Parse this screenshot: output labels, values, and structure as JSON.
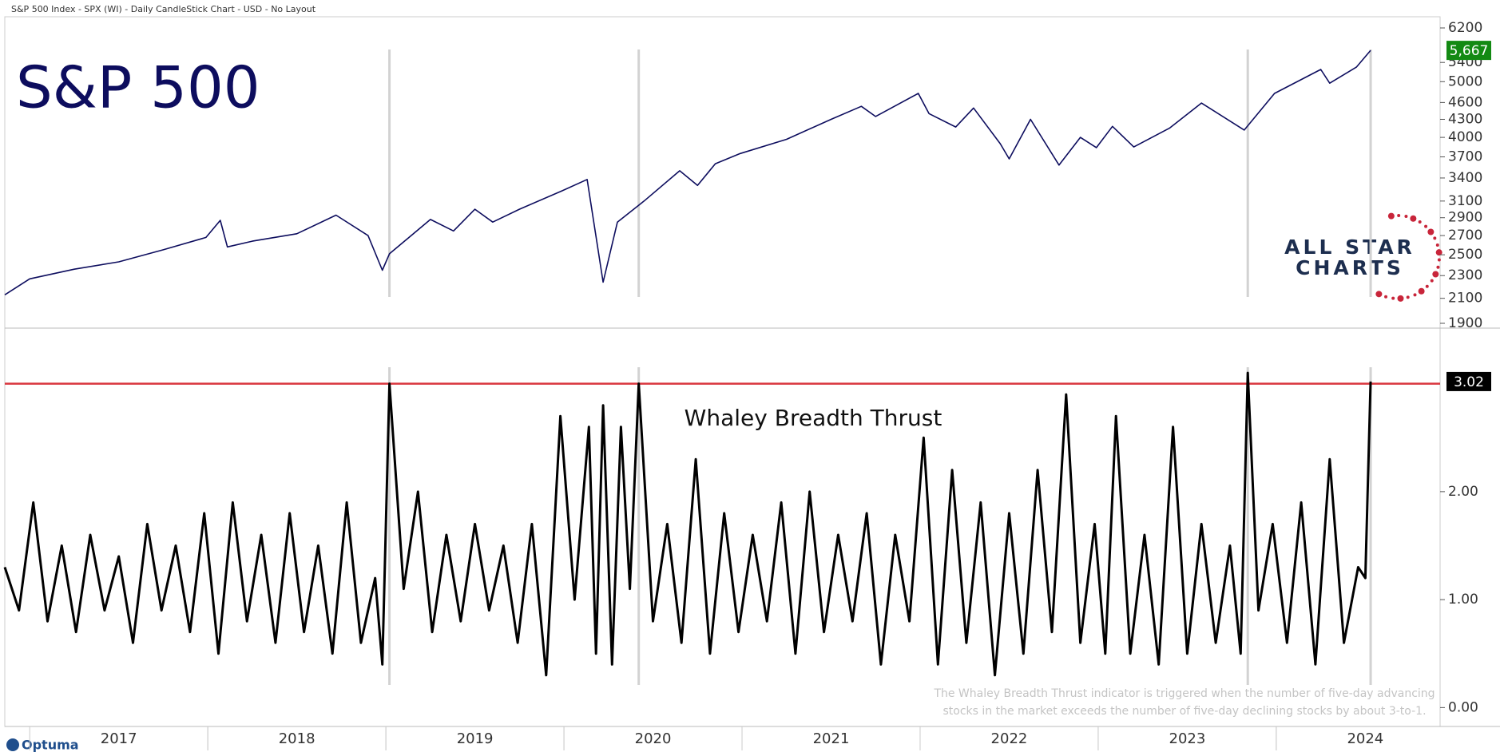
{
  "header": "S&P 500 Index - SPX (WI) - Daily CandleStick Chart - USD - No Layout",
  "logo": [
    "ALL STAR",
    "CHARTS"
  ],
  "footer": "Optuma",
  "chart_data": [
    {
      "type": "line",
      "title": "S&P 500",
      "log_scale": true,
      "color": "#0d0d5e",
      "x": [
        2016.86,
        2017.0,
        2017.25,
        2017.5,
        2017.75,
        2017.99,
        2018.07,
        2018.11,
        2018.25,
        2018.5,
        2018.72,
        2018.9,
        2018.98,
        2019.02,
        2019.25,
        2019.38,
        2019.5,
        2019.6,
        2019.75,
        2019.99,
        2020.13,
        2020.22,
        2020.3,
        2020.45,
        2020.65,
        2020.75,
        2020.85,
        2020.99,
        2021.25,
        2021.5,
        2021.67,
        2021.75,
        2021.99,
        2022.05,
        2022.2,
        2022.3,
        2022.45,
        2022.5,
        2022.62,
        2022.78,
        2022.9,
        2022.99,
        2023.08,
        2023.2,
        2023.4,
        2023.58,
        2023.82,
        2023.99,
        2024.25,
        2024.3,
        2024.45,
        2024.53
      ],
      "values": [
        2130,
        2270,
        2360,
        2430,
        2550,
        2680,
        2870,
        2580,
        2640,
        2720,
        2930,
        2700,
        2350,
        2510,
        2880,
        2750,
        3000,
        2850,
        3000,
        3230,
        3380,
        2240,
        2850,
        3100,
        3500,
        3300,
        3600,
        3750,
        3970,
        4300,
        4530,
        4350,
        4770,
        4400,
        4170,
        4500,
        3900,
        3670,
        4300,
        3580,
        4000,
        3840,
        4180,
        3850,
        4150,
        4590,
        4120,
        4770,
        5250,
        4970,
        5300,
        5667
      ],
      "last_value_label": "5,667",
      "last_value_color": "#138a13",
      "xlim": [
        2016.86,
        2024.92
      ],
      "ylim": [
        1900,
        6200
      ],
      "yticks": [
        1900,
        2100,
        2300,
        2500,
        2700,
        2900,
        3100,
        3400,
        3700,
        4000,
        4300,
        4600,
        5000,
        5400,
        6200
      ],
      "signals": [
        2019.02,
        2020.42,
        2023.84,
        2024.53
      ]
    },
    {
      "type": "line",
      "title": "Whaley Breadth Thrust",
      "color": "#000000",
      "x": [
        2016.86,
        2016.94,
        2017.02,
        2017.1,
        2017.18,
        2017.26,
        2017.34,
        2017.42,
        2017.5,
        2017.58,
        2017.66,
        2017.74,
        2017.82,
        2017.9,
        2017.98,
        2018.06,
        2018.14,
        2018.22,
        2018.3,
        2018.38,
        2018.46,
        2018.54,
        2018.62,
        2018.7,
        2018.78,
        2018.86,
        2018.94,
        2018.98,
        2019.02,
        2019.1,
        2019.18,
        2019.26,
        2019.34,
        2019.42,
        2019.5,
        2019.58,
        2019.66,
        2019.74,
        2019.82,
        2019.9,
        2019.98,
        2020.06,
        2020.14,
        2020.18,
        2020.22,
        2020.27,
        2020.32,
        2020.37,
        2020.42,
        2020.5,
        2020.58,
        2020.66,
        2020.74,
        2020.82,
        2020.9,
        2020.98,
        2021.06,
        2021.14,
        2021.22,
        2021.3,
        2021.38,
        2021.46,
        2021.54,
        2021.62,
        2021.7,
        2021.78,
        2021.86,
        2021.94,
        2022.02,
        2022.1,
        2022.18,
        2022.26,
        2022.34,
        2022.42,
        2022.5,
        2022.58,
        2022.66,
        2022.74,
        2022.82,
        2022.9,
        2022.98,
        2023.04,
        2023.1,
        2023.18,
        2023.26,
        2023.34,
        2023.42,
        2023.5,
        2023.58,
        2023.66,
        2023.74,
        2023.8,
        2023.84,
        2023.9,
        2023.98,
        2024.06,
        2024.14,
        2024.22,
        2024.3,
        2024.38,
        2024.46,
        2024.5,
        2024.53
      ],
      "values": [
        1.3,
        0.9,
        1.9,
        0.8,
        1.5,
        0.7,
        1.6,
        0.9,
        1.4,
        0.6,
        1.7,
        0.9,
        1.5,
        0.7,
        1.8,
        0.5,
        1.9,
        0.8,
        1.6,
        0.6,
        1.8,
        0.7,
        1.5,
        0.5,
        1.9,
        0.6,
        1.2,
        0.4,
        3.0,
        1.1,
        2.0,
        0.7,
        1.6,
        0.8,
        1.7,
        0.9,
        1.5,
        0.6,
        1.7,
        0.3,
        2.7,
        1.0,
        2.6,
        0.5,
        2.8,
        0.4,
        2.6,
        1.1,
        3.0,
        0.8,
        1.7,
        0.6,
        2.3,
        0.5,
        1.8,
        0.7,
        1.6,
        0.8,
        1.9,
        0.5,
        2.0,
        0.7,
        1.6,
        0.8,
        1.8,
        0.4,
        1.6,
        0.8,
        2.5,
        0.4,
        2.2,
        0.6,
        1.9,
        0.3,
        1.8,
        0.5,
        2.2,
        0.7,
        2.9,
        0.6,
        1.7,
        0.5,
        2.7,
        0.5,
        1.6,
        0.4,
        2.6,
        0.5,
        1.7,
        0.6,
        1.5,
        0.5,
        3.1,
        0.9,
        1.7,
        0.6,
        1.9,
        0.4,
        2.3,
        0.6,
        1.3,
        1.2,
        3.02
      ],
      "threshold": 3,
      "threshold_color": "#d9363e",
      "xlim": [
        2016.86,
        2024.92
      ],
      "xticks": [
        {
          "value": 2017.5,
          "label": "2017"
        },
        {
          "value": 2018.5,
          "label": "2018"
        },
        {
          "value": 2019.5,
          "label": "2019"
        },
        {
          "value": 2020.5,
          "label": "2020"
        },
        {
          "value": 2021.5,
          "label": "2021"
        },
        {
          "value": 2022.5,
          "label": "2022"
        },
        {
          "value": 2023.5,
          "label": "2023"
        },
        {
          "value": 2024.5,
          "label": "2024"
        }
      ],
      "ylim": [
        -0.16,
        3.5
      ],
      "yticks": [
        {
          "value": 0,
          "label": "0.00"
        },
        {
          "value": 1,
          "label": "1.00"
        },
        {
          "value": 2,
          "label": "2.00"
        }
      ],
      "signals": [
        2019.02,
        2020.42,
        2023.84,
        2024.53
      ],
      "note": [
        "The Whaley Breadth Thrust indicator is triggered when the number of five-day advancing",
        "stocks in the market exceeds the number of five-day declining stocks by about 3-to-1."
      ]
    }
  ]
}
